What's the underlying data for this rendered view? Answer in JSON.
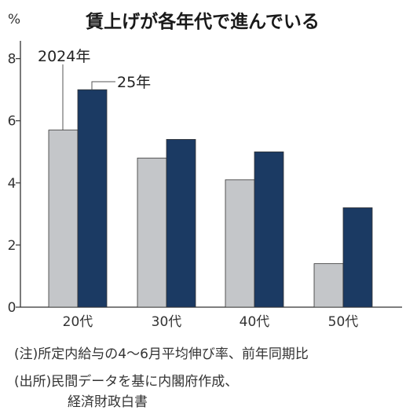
{
  "chart_data": {
    "type": "bar",
    "title": "賃上げが各年代で進んでいる",
    "unit": "%",
    "categories": [
      "20代",
      "30代",
      "40代",
      "50代"
    ],
    "series": [
      {
        "name": "2024年",
        "values": [
          5.7,
          4.8,
          4.1,
          1.4
        ],
        "color": "#c4c6c9"
      },
      {
        "name": "25年",
        "values": [
          7.0,
          5.4,
          5.0,
          3.2
        ],
        "color": "#1b3a63"
      }
    ],
    "yticks": [
      0,
      2,
      4,
      6,
      8
    ],
    "ylim": [
      0,
      8.8
    ],
    "grid": false
  },
  "notes": {
    "note": "(注)所定内給与の4～6月平均伸び率、前年同期比",
    "source_line1": "(出所)民間データを基に内閣府作成、",
    "source_line2": "経済財政白書"
  }
}
